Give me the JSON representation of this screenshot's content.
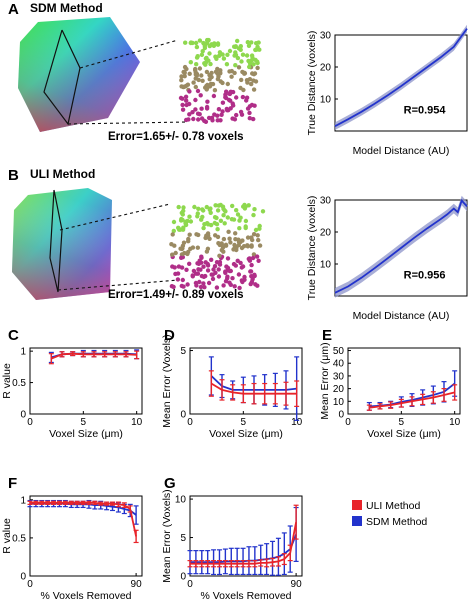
{
  "panels": {
    "A": {
      "label": "A",
      "title": "SDM Method",
      "error_text": "Error=1.65+/- 0.78 voxels"
    },
    "B": {
      "label": "B",
      "title": "ULI Method",
      "error_text": "Error=1.49+/- 0.89 voxels"
    }
  },
  "legend": {
    "items": [
      {
        "name": "ULI Method",
        "color": "#e8242a"
      },
      {
        "name": "SDM Method",
        "color": "#2233cc"
      }
    ]
  },
  "chart_data": [
    {
      "id": "A-right",
      "type": "line",
      "xlabel": "Model Distance (AU)",
      "ylabel": "True Distance (voxels)",
      "ylim": [
        0,
        30
      ],
      "yticks": [
        10,
        20,
        30
      ],
      "xticks": [],
      "annotation": "R=0.954",
      "series": [
        {
          "color": "#2233cc",
          "band": 1.2,
          "x": [
            0,
            0.1,
            0.2,
            0.3,
            0.4,
            0.5,
            0.6,
            0.7,
            0.8,
            0.9,
            1.0
          ],
          "y": [
            1.5,
            3.7,
            6.0,
            8.5,
            11.2,
            14.0,
            17.0,
            20.0,
            23.0,
            26.3,
            32.0
          ]
        }
      ]
    },
    {
      "id": "B-right",
      "type": "line",
      "xlabel": "Model Distance (AU)",
      "ylabel": "True Distance (voxels)",
      "ylim": [
        0,
        30
      ],
      "yticks": [
        10,
        20,
        30
      ],
      "xticks": [],
      "annotation": "R=0.956",
      "series": [
        {
          "color": "#2233cc",
          "band": 1.5,
          "x": [
            0,
            0.1,
            0.2,
            0.3,
            0.4,
            0.5,
            0.6,
            0.7,
            0.8,
            0.85,
            0.9,
            0.93,
            0.96,
            1.0
          ],
          "y": [
            1.0,
            3.0,
            5.7,
            8.7,
            11.8,
            15.0,
            18.2,
            21.2,
            24.0,
            25.5,
            27.3,
            26.2,
            29.8,
            28.0
          ]
        }
      ]
    },
    {
      "id": "C",
      "label": "C",
      "type": "line",
      "xlabel": "Voxel Size (μm)",
      "ylabel": "R value",
      "xlim": [
        0,
        10.5
      ],
      "ylim": [
        0,
        1.05
      ],
      "xticks": [
        0,
        5,
        10
      ],
      "yticks": [
        0,
        0.5,
        1
      ],
      "series": [
        {
          "name": "SDM Method",
          "color": "#2233cc",
          "x": [
            2,
            3,
            4,
            5,
            6,
            7,
            8,
            9,
            10
          ],
          "y": [
            0.9,
            0.95,
            0.96,
            0.96,
            0.96,
            0.96,
            0.96,
            0.96,
            0.95
          ],
          "err": [
            0.08,
            0.04,
            0.03,
            0.05,
            0.05,
            0.05,
            0.05,
            0.05,
            0.07
          ]
        },
        {
          "name": "ULI Method",
          "color": "#e8242a",
          "x": [
            2,
            3,
            4,
            5,
            6,
            7,
            8,
            9,
            10
          ],
          "y": [
            0.88,
            0.95,
            0.96,
            0.95,
            0.95,
            0.95,
            0.95,
            0.95,
            0.94
          ],
          "err": [
            0.08,
            0.04,
            0.03,
            0.04,
            0.04,
            0.04,
            0.04,
            0.04,
            0.06
          ]
        }
      ]
    },
    {
      "id": "D",
      "label": "D",
      "type": "line",
      "xlabel": "Voxel Size (μm)",
      "ylabel": "Mean Error (Voxels)",
      "xlim": [
        0,
        10.5
      ],
      "ylim": [
        0,
        5.2
      ],
      "xticks": [
        0,
        5,
        10
      ],
      "yticks": [
        0,
        5
      ],
      "series": [
        {
          "name": "SDM Method",
          "color": "#2233cc",
          "x": [
            2,
            3,
            4,
            5,
            6,
            7,
            8,
            9,
            10
          ],
          "y": [
            3.0,
            2.2,
            1.9,
            1.9,
            1.9,
            1.9,
            1.9,
            1.9,
            2.0
          ],
          "err": [
            1.5,
            0.9,
            0.7,
            1.0,
            1.1,
            1.2,
            1.3,
            1.5,
            2.5
          ]
        },
        {
          "name": "ULI Method",
          "color": "#e8242a",
          "x": [
            2,
            3,
            4,
            5,
            6,
            7,
            8,
            9,
            10
          ],
          "y": [
            2.4,
            1.9,
            1.7,
            1.6,
            1.6,
            1.6,
            1.6,
            1.6,
            1.6
          ],
          "err": [
            1.0,
            0.8,
            0.6,
            0.7,
            0.8,
            0.8,
            0.8,
            0.9,
            1.0
          ]
        }
      ]
    },
    {
      "id": "E",
      "label": "E",
      "type": "line",
      "xlabel": "Voxel Size (μm)",
      "ylabel": "Mean Error (μm)",
      "xlim": [
        0,
        10.5
      ],
      "ylim": [
        0,
        52
      ],
      "xticks": [
        0,
        5,
        10
      ],
      "yticks": [
        0,
        10,
        20,
        30,
        40,
        50
      ],
      "series": [
        {
          "name": "SDM Method",
          "color": "#2233cc",
          "x": [
            2,
            3,
            4,
            5,
            6,
            7,
            8,
            9,
            10
          ],
          "y": [
            6,
            6.5,
            7.5,
            9.5,
            11,
            13,
            15,
            17.5,
            24
          ],
          "err": [
            3,
            2.5,
            2.5,
            4,
            5,
            6,
            7,
            8,
            10
          ]
        },
        {
          "name": "ULI Method",
          "color": "#e8242a",
          "x": [
            2,
            3,
            4,
            5,
            6,
            7,
            8,
            9,
            10
          ],
          "y": [
            5,
            6,
            7,
            8.5,
            10,
            11.5,
            13,
            15,
            17
          ],
          "err": [
            2,
            2,
            2.5,
            3,
            3.5,
            4,
            4.5,
            5,
            6
          ]
        }
      ]
    },
    {
      "id": "F",
      "label": "F",
      "type": "line",
      "xlabel": "% Voxels Removed",
      "ylabel": "R value",
      "xlim": [
        0,
        95
      ],
      "ylim": [
        0,
        1.05
      ],
      "xticks": [
        0,
        90
      ],
      "yticks": [
        0,
        0.5,
        1
      ],
      "series": [
        {
          "name": "SDM Method",
          "color": "#2233cc",
          "x": [
            0,
            5,
            10,
            15,
            20,
            25,
            30,
            35,
            40,
            45,
            50,
            55,
            60,
            65,
            70,
            75,
            80,
            85,
            90
          ],
          "y": [
            0.95,
            0.95,
            0.95,
            0.95,
            0.95,
            0.95,
            0.95,
            0.94,
            0.94,
            0.94,
            0.94,
            0.93,
            0.93,
            0.92,
            0.91,
            0.9,
            0.88,
            0.86,
            0.8
          ],
          "err": [
            0.04,
            0.04,
            0.04,
            0.04,
            0.04,
            0.04,
            0.04,
            0.04,
            0.04,
            0.04,
            0.05,
            0.05,
            0.05,
            0.05,
            0.05,
            0.06,
            0.06,
            0.08,
            0.12
          ]
        },
        {
          "name": "ULI Method",
          "color": "#e8242a",
          "x": [
            0,
            5,
            10,
            15,
            20,
            25,
            30,
            35,
            40,
            45,
            50,
            55,
            60,
            65,
            70,
            75,
            80,
            85,
            90
          ],
          "y": [
            0.96,
            0.96,
            0.96,
            0.96,
            0.96,
            0.96,
            0.96,
            0.96,
            0.96,
            0.96,
            0.96,
            0.96,
            0.95,
            0.95,
            0.95,
            0.94,
            0.93,
            0.88,
            0.52
          ],
          "err": [
            0.02,
            0.02,
            0.02,
            0.02,
            0.02,
            0.02,
            0.02,
            0.02,
            0.02,
            0.02,
            0.02,
            0.02,
            0.02,
            0.02,
            0.02,
            0.03,
            0.03,
            0.04,
            0.08
          ]
        }
      ]
    },
    {
      "id": "G",
      "label": "G",
      "type": "line",
      "xlabel": "% Voxels Removed",
      "ylabel": "Mean Error (Voxels)",
      "xlim": [
        0,
        95
      ],
      "ylim": [
        0,
        10.4
      ],
      "xticks": [
        0,
        90
      ],
      "yticks": [
        0,
        5,
        10
      ],
      "series": [
        {
          "name": "SDM Method",
          "color": "#2233cc",
          "x": [
            0,
            5,
            10,
            15,
            20,
            25,
            30,
            35,
            40,
            45,
            50,
            55,
            60,
            65,
            70,
            75,
            80,
            85,
            90
          ],
          "y": [
            1.8,
            1.8,
            1.8,
            1.8,
            1.8,
            1.8,
            1.9,
            1.9,
            1.9,
            1.9,
            2.0,
            2.0,
            2.1,
            2.2,
            2.3,
            2.5,
            2.9,
            3.5,
            5.4
          ],
          "err": [
            1.5,
            1.5,
            1.5,
            1.5,
            1.6,
            1.6,
            1.6,
            1.7,
            1.7,
            1.7,
            1.8,
            1.8,
            1.9,
            2.0,
            2.2,
            2.4,
            2.7,
            3.0,
            3.5
          ]
        },
        {
          "name": "ULI Method",
          "color": "#e8242a",
          "x": [
            0,
            5,
            10,
            15,
            20,
            25,
            30,
            35,
            40,
            45,
            50,
            55,
            60,
            65,
            70,
            75,
            80,
            85,
            90
          ],
          "y": [
            1.6,
            1.6,
            1.6,
            1.6,
            1.6,
            1.6,
            1.6,
            1.6,
            1.6,
            1.6,
            1.6,
            1.6,
            1.7,
            1.7,
            1.8,
            1.9,
            2.2,
            3.0,
            7.0
          ],
          "err": [
            0.4,
            0.4,
            0.4,
            0.4,
            0.4,
            0.4,
            0.4,
            0.4,
            0.4,
            0.4,
            0.4,
            0.4,
            0.4,
            0.5,
            0.5,
            0.6,
            0.7,
            1.0,
            2.2
          ]
        }
      ]
    }
  ]
}
